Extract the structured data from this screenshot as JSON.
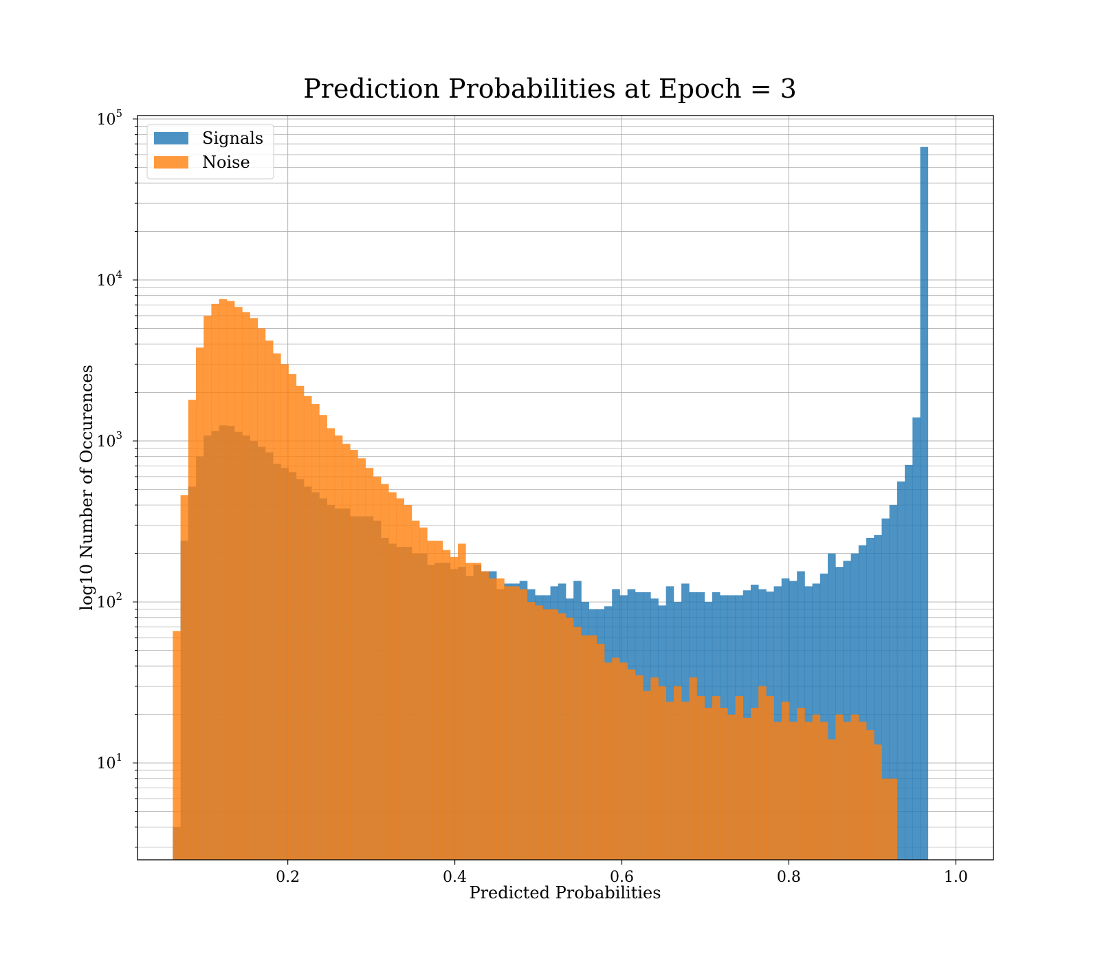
{
  "chart_data": {
    "type": "histogram",
    "title": "Prediction Probabilities at Epoch = 3",
    "xlabel": "Predicted Probabilities",
    "ylabel": "log10 Number of Occurences",
    "x_scale": "linear",
    "y_scale": "log",
    "xlim": [
      0.02,
      1.045
    ],
    "ylim": [
      2.5,
      105000
    ],
    "x_ticks": [
      0.2,
      0.4,
      0.6,
      0.8,
      1.0
    ],
    "x_tick_labels": [
      "0.2",
      "0.4",
      "0.6",
      "0.8",
      "1.0"
    ],
    "y_ticks": [
      10,
      100,
      1000,
      10000,
      100000
    ],
    "y_tick_labels": [
      {
        "base": "10",
        "exp": "1"
      },
      {
        "base": "10",
        "exp": "2"
      },
      {
        "base": "10",
        "exp": "3"
      },
      {
        "base": "10",
        "exp": "4"
      },
      {
        "base": "10",
        "exp": "5"
      }
    ],
    "grid": true,
    "legend_position": "top-left",
    "colors": {
      "Signals": "#1f77b4",
      "Noise": "#ff7f0e"
    },
    "bin_start": 0.0623,
    "bin_width": 0.009227,
    "series": [
      {
        "name": "Signals",
        "color": "#1f77b4",
        "alpha": 0.8,
        "values": [
          4,
          240,
          520,
          800,
          1080,
          1150,
          1250,
          1240,
          1140,
          1080,
          1000,
          920,
          850,
          720,
          680,
          640,
          580,
          520,
          480,
          440,
          400,
          380,
          380,
          340,
          340,
          340,
          320,
          250,
          230,
          220,
          220,
          200,
          200,
          170,
          175,
          175,
          160,
          165,
          145,
          170,
          155,
          155,
          120,
          130,
          130,
          135,
          120,
          110,
          110,
          125,
          130,
          105,
          135,
          100,
          90,
          90,
          94,
          120,
          110,
          120,
          115,
          115,
          105,
          95,
          125,
          100,
          130,
          115,
          115,
          100,
          115,
          110,
          110,
          110,
          118,
          128,
          120,
          116,
          125,
          140,
          135,
          155,
          125,
          130,
          150,
          200,
          165,
          180,
          200,
          225,
          250,
          260,
          330,
          400,
          560,
          710,
          1400,
          67000
        ]
      },
      {
        "name": "Noise",
        "color": "#ff7f0e",
        "alpha": 0.8,
        "values": [
          66,
          460,
          1800,
          3800,
          6000,
          7100,
          7600,
          7400,
          6800,
          6300,
          5800,
          5000,
          4200,
          3500,
          3000,
          2600,
          2200,
          1900,
          1700,
          1450,
          1200,
          1080,
          960,
          880,
          780,
          680,
          600,
          540,
          480,
          440,
          400,
          320,
          290,
          240,
          240,
          210,
          190,
          230,
          175,
          175,
          155,
          140,
          140,
          125,
          125,
          120,
          100,
          95,
          90,
          90,
          85,
          80,
          70,
          62,
          62,
          55,
          42,
          45,
          42,
          38,
          35,
          28,
          34,
          30,
          24,
          30,
          24,
          34,
          26,
          22,
          26,
          22,
          20,
          26,
          19,
          22,
          30,
          26,
          18,
          24,
          18,
          22,
          18,
          20,
          18,
          14,
          20,
          18,
          20,
          18,
          16,
          13,
          8,
          8
        ]
      }
    ]
  }
}
